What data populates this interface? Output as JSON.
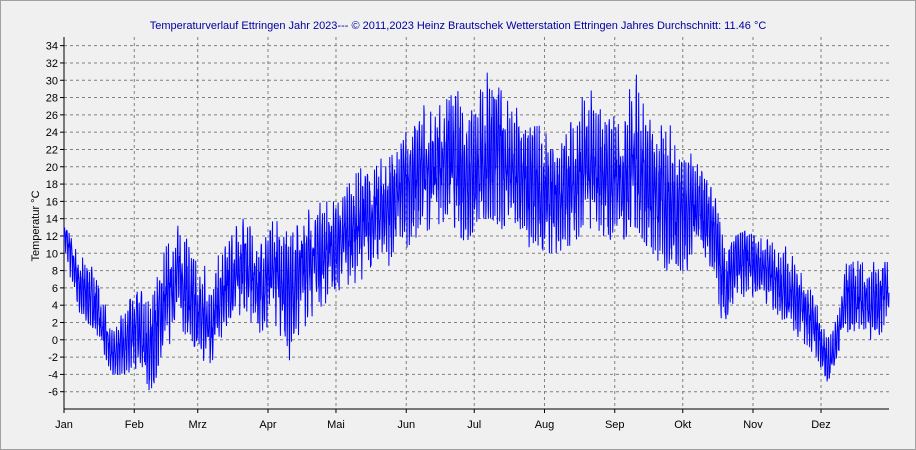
{
  "chart_data": {
    "type": "line",
    "title": "Temperaturverlauf Ettringen Jahr 2023--- © 2011,2023 Heinz Brautschek Wetterstation Ettringen Jahres Durchschnitt: 11.46 °C",
    "xlabel": "",
    "ylabel": "Temperatur °C",
    "ylim": [
      -8,
      35
    ],
    "yticks": [
      34,
      32,
      30,
      28,
      26,
      24,
      22,
      20,
      18,
      16,
      14,
      12,
      10,
      8,
      6,
      4,
      2,
      0,
      -2,
      -4,
      -6
    ],
    "x_categories": [
      "Jan",
      "Feb",
      "Mrz",
      "Apr",
      "Mai",
      "Jun",
      "Jul",
      "Aug",
      "Sep",
      "Okt",
      "Nov",
      "Dez"
    ],
    "grid": true,
    "line_color": "#0000ff",
    "series": [
      {
        "x_unit": "day of year 2023",
        "annual_average": 11.46,
        "anchors": [
          [
            1,
            12.5,
            9,
            13
          ],
          [
            8,
            6,
            3,
            11
          ],
          [
            15,
            4,
            1,
            9
          ],
          [
            22,
            -2,
            -4,
            2
          ],
          [
            29,
            0,
            -4,
            4
          ],
          [
            32,
            2,
            -3,
            8
          ],
          [
            38,
            -2,
            -7,
            6
          ],
          [
            45,
            4,
            -2,
            10
          ],
          [
            52,
            8,
            2,
            15
          ],
          [
            59,
            3,
            -3,
            10
          ],
          [
            66,
            2,
            -3,
            8
          ],
          [
            73,
            6,
            0,
            12
          ],
          [
            80,
            9,
            3,
            14
          ],
          [
            87,
            6,
            0,
            12
          ],
          [
            94,
            8,
            2,
            14
          ],
          [
            101,
            6,
            -4,
            12
          ],
          [
            108,
            9,
            2,
            15
          ],
          [
            115,
            10,
            4,
            16
          ],
          [
            122,
            11,
            5,
            16
          ],
          [
            129,
            13,
            6,
            19
          ],
          [
            136,
            14,
            8,
            21
          ],
          [
            143,
            15,
            8,
            22
          ],
          [
            150,
            17,
            10,
            23
          ],
          [
            157,
            19,
            12,
            27
          ],
          [
            164,
            20,
            13,
            29
          ],
          [
            171,
            21,
            14,
            30
          ],
          [
            178,
            19,
            11,
            28
          ],
          [
            185,
            20,
            14,
            31
          ],
          [
            190,
            22,
            14,
            34
          ],
          [
            197,
            20,
            12,
            28
          ],
          [
            204,
            18,
            11,
            26
          ],
          [
            211,
            17,
            10,
            25
          ],
          [
            218,
            16,
            10,
            22
          ],
          [
            225,
            18,
            11,
            28
          ],
          [
            232,
            20,
            13,
            30
          ],
          [
            239,
            19,
            12,
            28
          ],
          [
            246,
            18,
            11,
            26
          ],
          [
            253,
            21,
            13,
            32
          ],
          [
            260,
            17,
            10,
            26
          ],
          [
            267,
            16,
            8,
            25
          ],
          [
            274,
            15,
            8,
            24
          ],
          [
            281,
            16,
            8,
            20
          ],
          [
            288,
            12,
            6,
            17
          ],
          [
            293,
            5,
            -1,
            10
          ],
          [
            297,
            9,
            3,
            12
          ],
          [
            305,
            9,
            5,
            13
          ],
          [
            312,
            8,
            4,
            12
          ],
          [
            319,
            6,
            2,
            11
          ],
          [
            326,
            4,
            0,
            9
          ],
          [
            333,
            1,
            -2,
            5
          ],
          [
            338,
            -3,
            -5,
            1
          ],
          [
            342,
            0,
            -2,
            3
          ],
          [
            346,
            5,
            1,
            10
          ],
          [
            352,
            5,
            0,
            9
          ],
          [
            358,
            4,
            -1,
            9
          ],
          [
            365,
            6,
            2,
            9
          ]
        ]
      }
    ]
  }
}
